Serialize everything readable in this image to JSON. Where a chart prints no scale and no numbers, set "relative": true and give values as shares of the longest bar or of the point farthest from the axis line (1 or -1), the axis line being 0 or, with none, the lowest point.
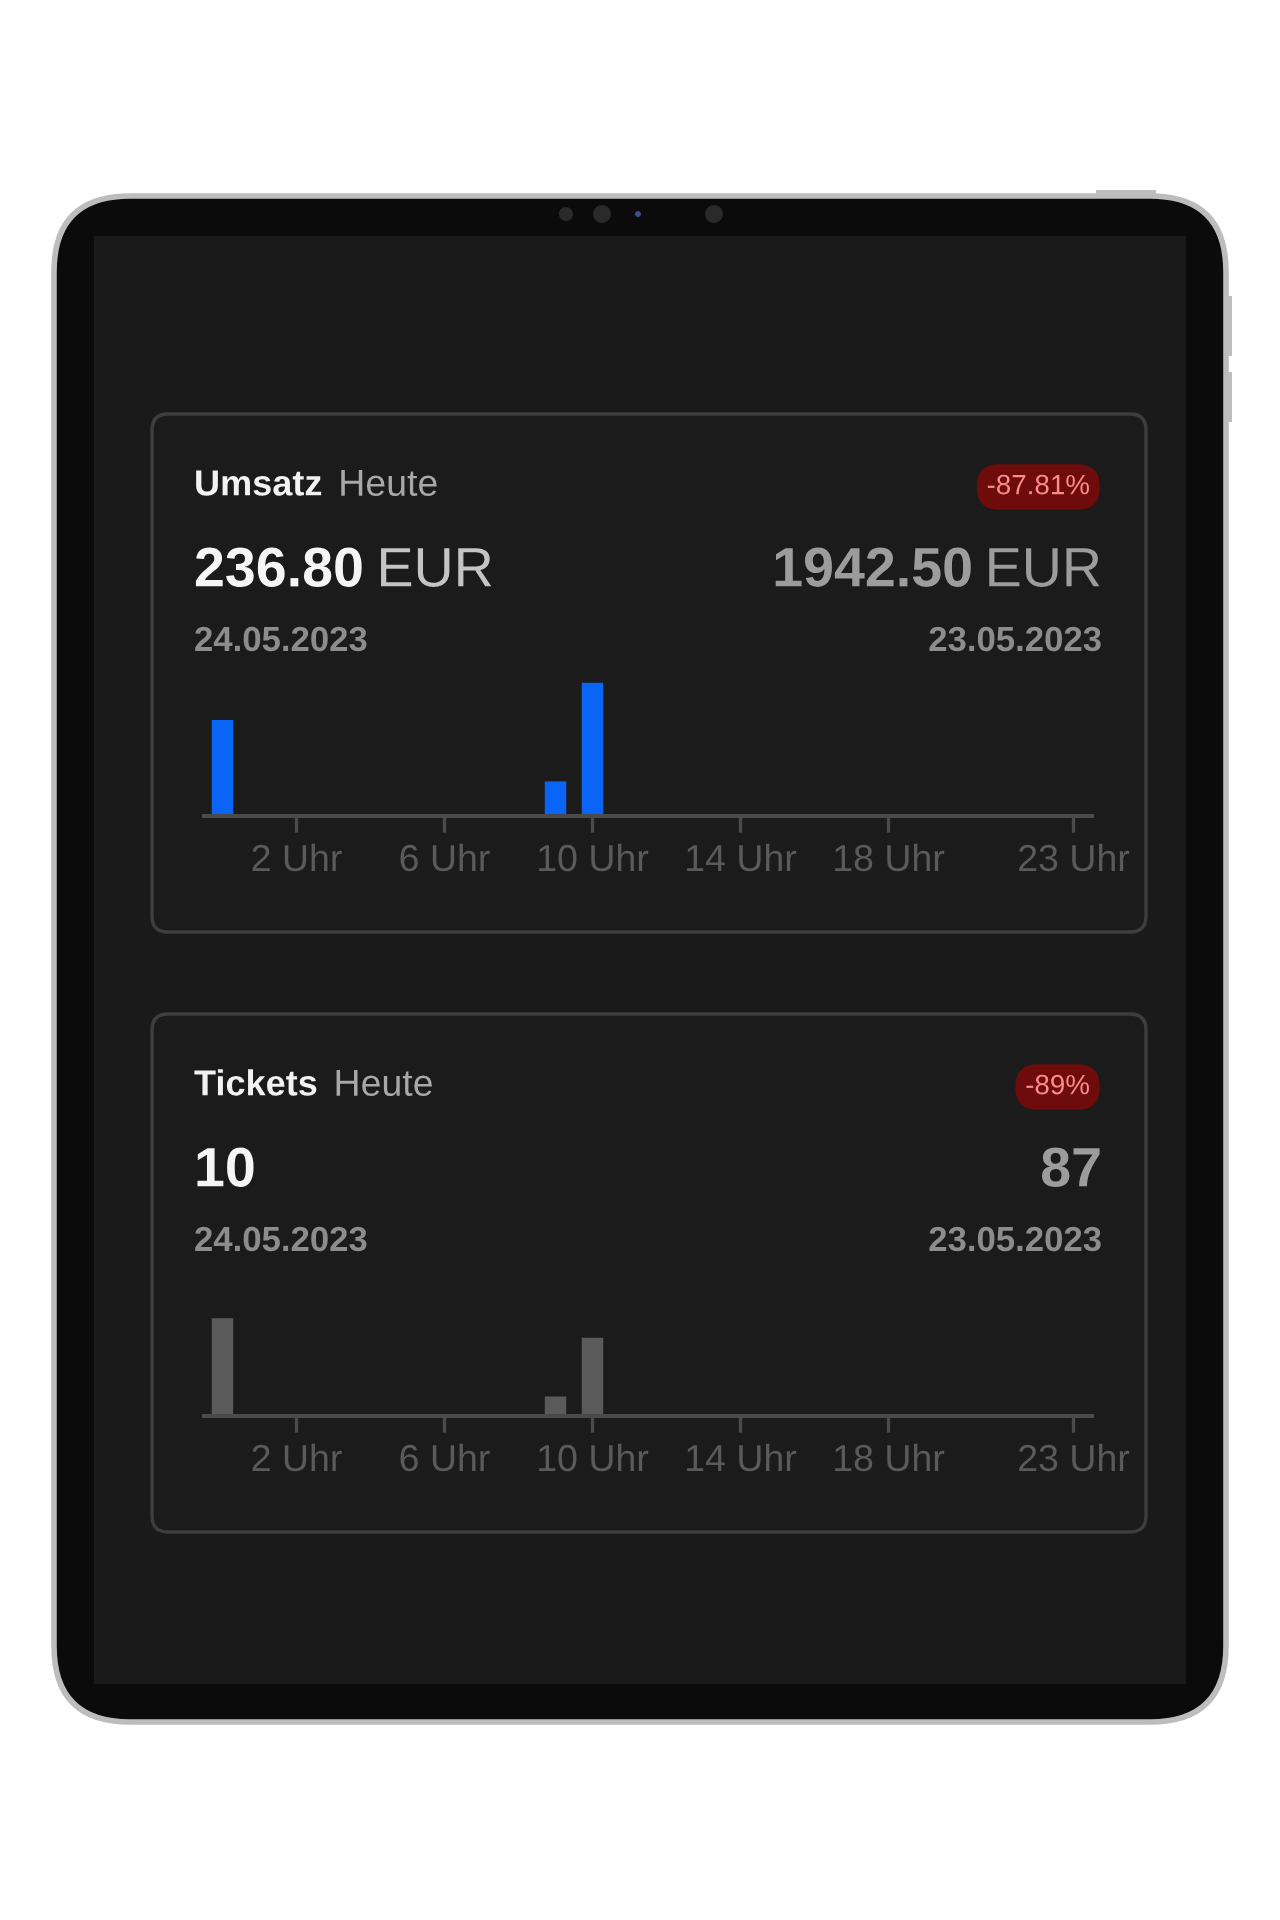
{
  "chart_data": [
    {
      "type": "bar",
      "title": "Umsatz",
      "subtitle": "Heute",
      "categories": [
        null,
        null,
        "2 Uhr",
        null,
        null,
        null,
        "6 Uhr",
        null,
        null,
        null,
        "10 Uhr",
        null,
        null,
        null,
        "14 Uhr",
        null,
        null,
        null,
        "18 Uhr",
        null,
        null,
        null,
        null,
        "23 Uhr"
      ],
      "values": [
        0.72,
        0,
        0,
        0,
        0,
        0,
        0,
        0,
        0,
        0.26,
        1,
        0,
        0,
        0,
        0,
        0,
        0,
        0,
        0,
        0,
        0,
        0,
        0,
        0
      ],
      "color": "#0a64f5",
      "relative": true,
      "annotations": [
        "-87.81%",
        "236.80 EUR",
        "24.05.2023",
        "1942.50 EUR",
        "23.05.2023"
      ]
    },
    {
      "type": "bar",
      "title": "Tickets",
      "subtitle": "Heute",
      "categories": [
        null,
        null,
        "2 Uhr",
        null,
        null,
        null,
        "6 Uhr",
        null,
        null,
        null,
        "10 Uhr",
        null,
        null,
        null,
        "14 Uhr",
        null,
        null,
        null,
        "18 Uhr",
        null,
        null,
        null,
        null,
        "23 Uhr"
      ],
      "values": [
        1,
        0,
        0,
        0,
        0,
        0,
        0,
        0,
        0,
        0.2,
        0.8,
        0,
        0,
        0,
        0,
        0,
        0,
        0,
        0,
        0,
        0,
        0,
        0,
        0
      ],
      "color": "#5a5a5a",
      "relative": true,
      "annotations": [
        "-89%",
        "10",
        "24.05.2023",
        "87",
        "23.05.2023"
      ]
    }
  ]
}
